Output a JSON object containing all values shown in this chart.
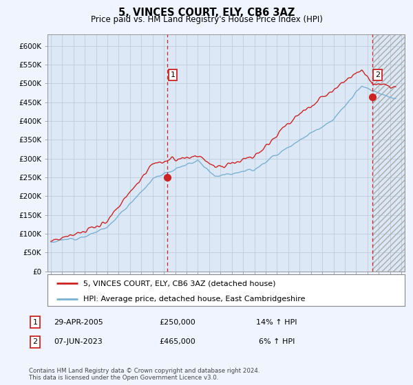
{
  "title": "5, VINCES COURT, ELY, CB6 3AZ",
  "subtitle": "Price paid vs. HM Land Registry's House Price Index (HPI)",
  "ylabel_ticks": [
    "£0",
    "£50K",
    "£100K",
    "£150K",
    "£200K",
    "£250K",
    "£300K",
    "£350K",
    "£400K",
    "£450K",
    "£500K",
    "£550K",
    "£600K"
  ],
  "ytick_values": [
    0,
    50000,
    100000,
    150000,
    200000,
    250000,
    300000,
    350000,
    400000,
    450000,
    500000,
    550000,
    600000
  ],
  "ylim": [
    0,
    630000
  ],
  "xlim_start": 1994.7,
  "xlim_end": 2026.3,
  "hpi_color": "#7ab0d4",
  "price_color": "#cc2222",
  "marker1_x": 2005.32,
  "marker1_y": 250000,
  "marker2_x": 2023.44,
  "marker2_y": 465000,
  "legend_line1": "5, VINCES COURT, ELY, CB6 3AZ (detached house)",
  "legend_line2": "HPI: Average price, detached house, East Cambridgeshire",
  "table_row1_num": "1",
  "table_row1_date": "29-APR-2005",
  "table_row1_price": "£250,000",
  "table_row1_hpi": "14% ↑ HPI",
  "table_row2_num": "2",
  "table_row2_date": "07-JUN-2023",
  "table_row2_price": "£465,000",
  "table_row2_hpi": "6% ↑ HPI",
  "footer": "Contains HM Land Registry data © Crown copyright and database right 2024.\nThis data is licensed under the Open Government Licence v3.0.",
  "background_color": "#f0f4ff",
  "plot_bg_color": "#dce8f5"
}
